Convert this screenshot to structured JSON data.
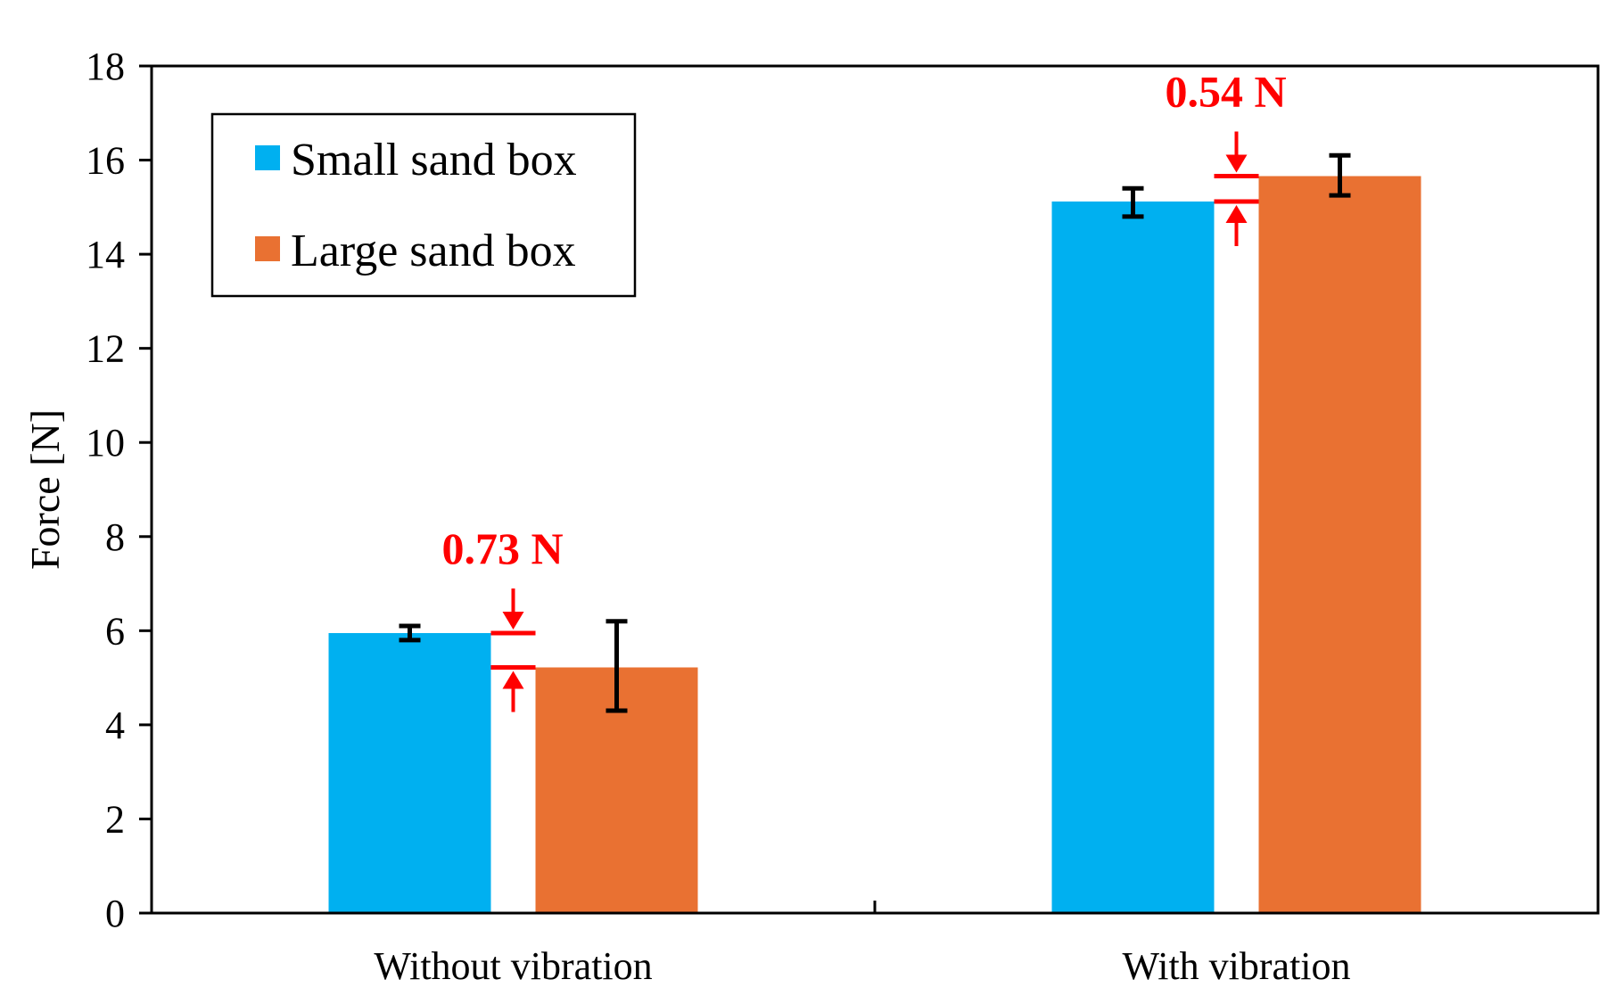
{
  "chart_data": {
    "type": "bar",
    "title": "",
    "xlabel": "",
    "ylabel": "Force [N]",
    "ylim": [
      0,
      18
    ],
    "yticks": [
      0,
      2,
      4,
      6,
      8,
      10,
      12,
      14,
      16,
      18
    ],
    "categories": [
      "Without vibration",
      "With vibration"
    ],
    "series": [
      {
        "name": "Small sand box",
        "color": "#00B0F0",
        "values": [
          5.95,
          15.12
        ],
        "error_low": [
          5.8,
          14.8
        ],
        "error_high": [
          6.1,
          15.4
        ]
      },
      {
        "name": "Large sand box",
        "color": "#E97132",
        "values": [
          5.22,
          15.66
        ],
        "error_low": [
          4.3,
          15.25
        ],
        "error_high": [
          6.2,
          16.1
        ]
      }
    ],
    "legend": {
      "position": "top-left",
      "entries": [
        "Small sand box",
        "Large sand box"
      ]
    },
    "annotations": [
      {
        "category": "Without vibration",
        "text": "0.73 N",
        "upper_value": 5.95,
        "lower_value": 5.22,
        "color": "#FF0000"
      },
      {
        "category": "With vibration",
        "text": "0.54 N",
        "upper_value": 15.66,
        "lower_value": 15.12,
        "color": "#FF0000"
      }
    ],
    "grid": false
  }
}
